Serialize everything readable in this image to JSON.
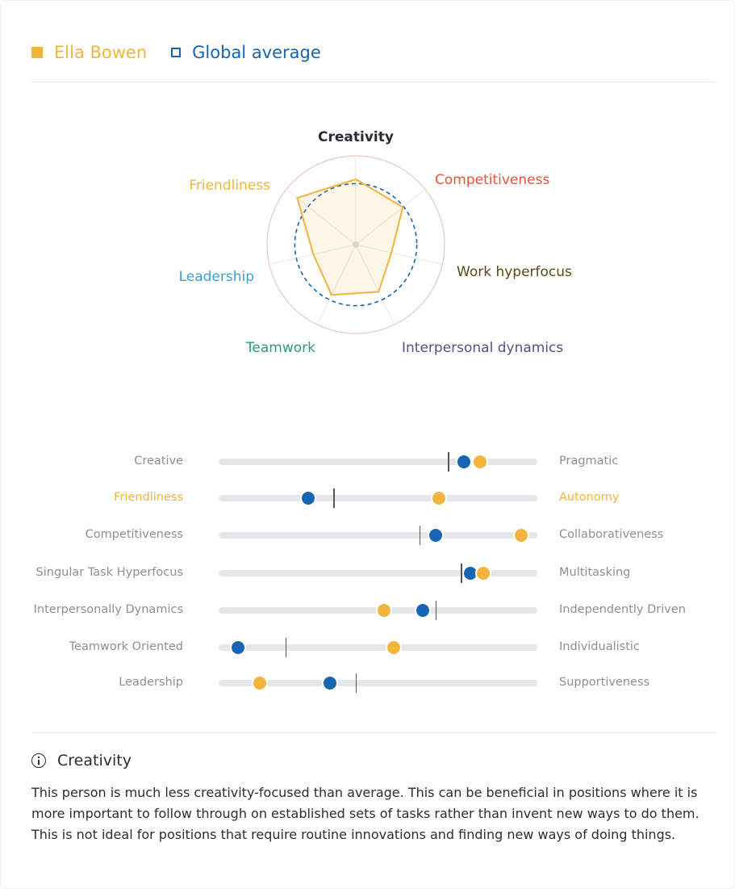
{
  "legend": {
    "person": "Ella Bowen",
    "average": "Global average"
  },
  "colors": {
    "person": "#f2b43c",
    "average": "#1565b3",
    "creativity": "#2a2d35",
    "competitiveness": "#e8533c",
    "work_hyperfocus": "#5a4714",
    "interpersonal": "#5d4c8c",
    "teamwork": "#2f9a6b",
    "leadership": "#3a9ed8",
    "friendliness": "#f2b43c",
    "label_gray": "#8a8f98"
  },
  "chart_data": [
    {
      "type": "radar",
      "axes": [
        "Creativity",
        "Competitiveness",
        "Work hyperfocus",
        "Interpersonal dynamics",
        "Teamwork",
        "Leadership",
        "Friendliness"
      ],
      "range": [
        0,
        100
      ],
      "series": [
        {
          "name": "Ella Bowen",
          "values": [
            75,
            69,
            42,
            60,
            64,
            50,
            86
          ]
        },
        {
          "name": "Global average",
          "values": [
            70,
            70,
            70,
            70,
            70,
            70,
            70
          ]
        }
      ]
    },
    {
      "type": "slider-comparison",
      "range": [
        0,
        100
      ],
      "rows": [
        {
          "left": "Creative",
          "right": "Pragmatic",
          "person": 82,
          "average": 77,
          "highlight": false
        },
        {
          "left": "Friendliness",
          "right": "Autonomy",
          "person": 69,
          "average": 28,
          "highlight": true
        },
        {
          "left": "Competitiveness",
          "right": "Collaborativeness",
          "person": 95,
          "average": 68,
          "highlight": false
        },
        {
          "left": "Singular Task Hyperfocus",
          "right": "Multitasking",
          "person": 83,
          "average": 79,
          "highlight": false
        },
        {
          "left": "Interpersonally Dynamics",
          "right": "Independently Driven",
          "person": 52,
          "average": 64,
          "highlight": false
        },
        {
          "left": "Teamwork Oriented",
          "right": "Individualistic",
          "person": 55,
          "average": 6,
          "highlight": false
        },
        {
          "left": "Leadership",
          "right": "Supportiveness",
          "person": 13,
          "average": 35,
          "highlight": false
        }
      ],
      "global_positions": [
        72,
        36,
        63,
        76,
        68,
        21,
        43
      ]
    }
  ],
  "info": {
    "title": "Creativity",
    "text": "This person is much less creativity-focused than average. This can be beneficial in positions where it is more important to follow through on established sets of tasks rather than invent new ways to do them. This is not ideal for positions that require routine innovations and finding new ways of doing things."
  }
}
